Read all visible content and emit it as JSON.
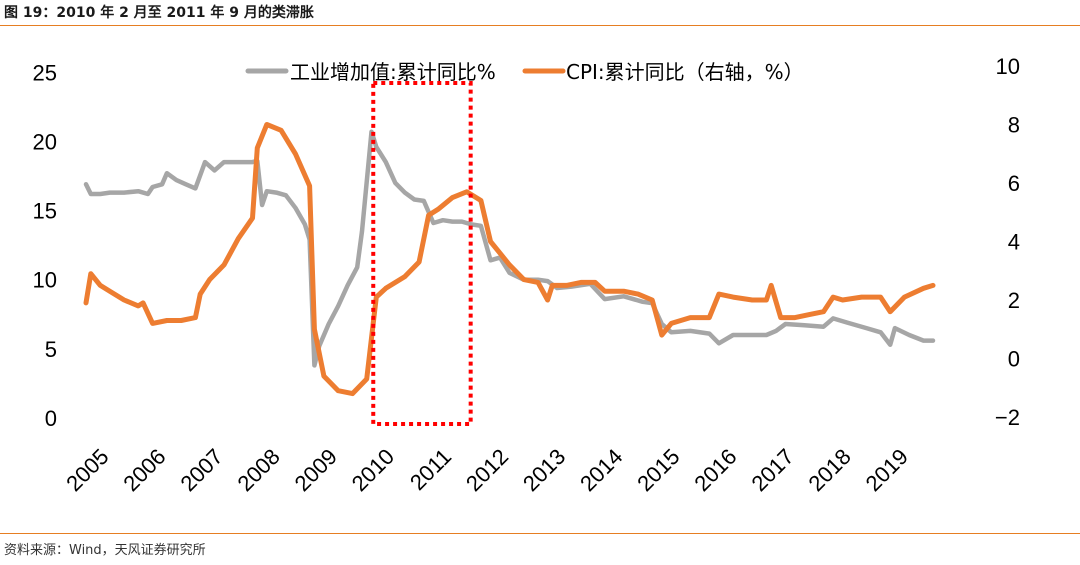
{
  "figure": {
    "title": "图 19：2010 年 2 月至 2011 年 9 月的类滞胀",
    "source": "资料来源：Wind，天风证券研究所"
  },
  "chart_data": {
    "type": "line",
    "title": "",
    "xlabel": "",
    "ylabel_left": "",
    "ylabel_right": "",
    "x_ticks": [
      "2005",
      "2006",
      "2007",
      "2008",
      "2009",
      "2010",
      "2011",
      "2012",
      "2013",
      "2014",
      "2015",
      "2016",
      "2017",
      "2018",
      "2019"
    ],
    "y_left_ticks": [
      "0",
      "5",
      "10",
      "15",
      "20",
      "25"
    ],
    "y_left_range": [
      0,
      25
    ],
    "y_right_ticks": [
      "−2",
      "0",
      "2",
      "4",
      "6",
      "8",
      "10"
    ],
    "y_right_range": [
      -2,
      10
    ],
    "legend_position": "top",
    "grid": false,
    "highlight_box": {
      "from": "2010-02",
      "to": "2011-09",
      "style": "dotted red"
    },
    "series": [
      {
        "name": "工业增加值:累计同比%",
        "axis": "left",
        "color": "#a6a6a6",
        "points": [
          [
            "2005-01",
            16.9
          ],
          [
            "2005-02",
            16.2
          ],
          [
            "2005-04",
            16.2
          ],
          [
            "2005-06",
            16.3
          ],
          [
            "2005-09",
            16.3
          ],
          [
            "2005-12",
            16.4
          ],
          [
            "2006-02",
            16.2
          ],
          [
            "2006-03",
            16.7
          ],
          [
            "2006-05",
            16.9
          ],
          [
            "2006-06",
            17.7
          ],
          [
            "2006-08",
            17.2
          ],
          [
            "2006-10",
            16.9
          ],
          [
            "2006-12",
            16.6
          ],
          [
            "2007-02",
            18.5
          ],
          [
            "2007-04",
            17.9
          ],
          [
            "2007-06",
            18.5
          ],
          [
            "2007-09",
            18.5
          ],
          [
            "2007-12",
            18.5
          ],
          [
            "2008-01",
            18.6
          ],
          [
            "2008-02",
            15.4
          ],
          [
            "2008-03",
            16.4
          ],
          [
            "2008-05",
            16.3
          ],
          [
            "2008-07",
            16.1
          ],
          [
            "2008-09",
            15.2
          ],
          [
            "2008-11",
            14.0
          ],
          [
            "2008-12",
            12.9
          ],
          [
            "2009-01",
            3.8
          ],
          [
            "2009-02",
            5.2
          ],
          [
            "2009-04",
            6.8
          ],
          [
            "2009-06",
            8.1
          ],
          [
            "2009-08",
            9.6
          ],
          [
            "2009-10",
            10.9
          ],
          [
            "2009-11",
            13.5
          ],
          [
            "2010-01",
            20.7
          ],
          [
            "2010-02",
            19.6
          ],
          [
            "2010-04",
            18.5
          ],
          [
            "2010-06",
            17.0
          ],
          [
            "2010-08",
            16.3
          ],
          [
            "2010-10",
            15.8
          ],
          [
            "2010-12",
            15.7
          ],
          [
            "2011-02",
            14.1
          ],
          [
            "2011-04",
            14.3
          ],
          [
            "2011-06",
            14.2
          ],
          [
            "2011-08",
            14.2
          ],
          [
            "2011-10",
            14.0
          ],
          [
            "2011-12",
            13.9
          ],
          [
            "2012-02",
            11.4
          ],
          [
            "2012-04",
            11.6
          ],
          [
            "2012-06",
            10.5
          ],
          [
            "2012-09",
            10.0
          ],
          [
            "2012-12",
            10.0
          ],
          [
            "2013-02",
            9.9
          ],
          [
            "2013-04",
            9.4
          ],
          [
            "2013-07",
            9.5
          ],
          [
            "2013-11",
            9.7
          ],
          [
            "2014-02",
            8.6
          ],
          [
            "2014-06",
            8.8
          ],
          [
            "2014-10",
            8.4
          ],
          [
            "2014-12",
            8.3
          ],
          [
            "2015-02",
            6.8
          ],
          [
            "2015-04",
            6.2
          ],
          [
            "2015-08",
            6.3
          ],
          [
            "2015-12",
            6.1
          ],
          [
            "2016-02",
            5.4
          ],
          [
            "2016-05",
            6.0
          ],
          [
            "2016-08",
            6.0
          ],
          [
            "2016-12",
            6.0
          ],
          [
            "2017-02",
            6.3
          ],
          [
            "2017-04",
            6.8
          ],
          [
            "2017-08",
            6.7
          ],
          [
            "2017-12",
            6.6
          ],
          [
            "2018-02",
            7.2
          ],
          [
            "2018-05",
            6.9
          ],
          [
            "2018-09",
            6.5
          ],
          [
            "2018-12",
            6.2
          ],
          [
            "2019-02",
            5.3
          ],
          [
            "2019-03",
            6.5
          ],
          [
            "2019-06",
            6.0
          ],
          [
            "2019-09",
            5.6
          ],
          [
            "2019-11",
            5.6
          ]
        ]
      },
      {
        "name": "CPI:累计同比（右轴，%）",
        "axis": "right",
        "color": "#ed7d31",
        "points": [
          [
            "2005-01",
            1.9
          ],
          [
            "2005-02",
            2.9
          ],
          [
            "2005-04",
            2.5
          ],
          [
            "2005-06",
            2.3
          ],
          [
            "2005-09",
            2.0
          ],
          [
            "2005-12",
            1.8
          ],
          [
            "2006-01",
            1.9
          ],
          [
            "2006-03",
            1.2
          ],
          [
            "2006-06",
            1.3
          ],
          [
            "2006-09",
            1.3
          ],
          [
            "2006-12",
            1.4
          ],
          [
            "2007-01",
            2.2
          ],
          [
            "2007-03",
            2.7
          ],
          [
            "2007-06",
            3.2
          ],
          [
            "2007-09",
            4.1
          ],
          [
            "2007-12",
            4.8
          ],
          [
            "2008-01",
            7.2
          ],
          [
            "2008-03",
            8.0
          ],
          [
            "2008-06",
            7.8
          ],
          [
            "2008-09",
            7.0
          ],
          [
            "2008-12",
            5.9
          ],
          [
            "2009-01",
            1.0
          ],
          [
            "2009-03",
            -0.6
          ],
          [
            "2009-06",
            -1.1
          ],
          [
            "2009-09",
            -1.2
          ],
          [
            "2009-12",
            -0.7
          ],
          [
            "2010-02",
            2.1
          ],
          [
            "2010-04",
            2.4
          ],
          [
            "2010-08",
            2.8
          ],
          [
            "2010-11",
            3.3
          ],
          [
            "2011-01",
            4.9
          ],
          [
            "2011-03",
            5.1
          ],
          [
            "2011-06",
            5.5
          ],
          [
            "2011-09",
            5.7
          ],
          [
            "2011-12",
            5.4
          ],
          [
            "2012-02",
            4.0
          ],
          [
            "2012-04",
            3.6
          ],
          [
            "2012-06",
            3.2
          ],
          [
            "2012-09",
            2.7
          ],
          [
            "2012-12",
            2.6
          ],
          [
            "2013-02",
            2.0
          ],
          [
            "2013-03",
            2.5
          ],
          [
            "2013-06",
            2.5
          ],
          [
            "2013-09",
            2.6
          ],
          [
            "2013-12",
            2.6
          ],
          [
            "2014-02",
            2.3
          ],
          [
            "2014-06",
            2.3
          ],
          [
            "2014-09",
            2.2
          ],
          [
            "2014-12",
            2.0
          ],
          [
            "2015-02",
            0.8
          ],
          [
            "2015-04",
            1.2
          ],
          [
            "2015-08",
            1.4
          ],
          [
            "2015-12",
            1.4
          ],
          [
            "2016-02",
            2.2
          ],
          [
            "2016-05",
            2.1
          ],
          [
            "2016-09",
            2.0
          ],
          [
            "2016-12",
            2.0
          ],
          [
            "2017-01",
            2.5
          ],
          [
            "2017-03",
            1.4
          ],
          [
            "2017-06",
            1.4
          ],
          [
            "2017-09",
            1.5
          ],
          [
            "2017-12",
            1.6
          ],
          [
            "2018-02",
            2.1
          ],
          [
            "2018-04",
            2.0
          ],
          [
            "2018-08",
            2.1
          ],
          [
            "2018-12",
            2.1
          ],
          [
            "2019-02",
            1.6
          ],
          [
            "2019-05",
            2.1
          ],
          [
            "2019-09",
            2.4
          ],
          [
            "2019-11",
            2.5
          ]
        ]
      }
    ]
  }
}
